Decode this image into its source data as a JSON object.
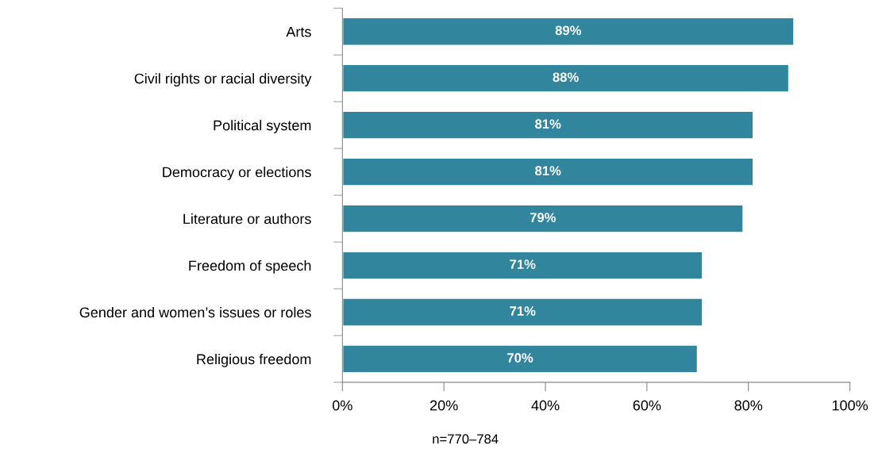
{
  "chart_data": {
    "type": "bar",
    "orientation": "horizontal",
    "categories": [
      "Arts",
      "Civil rights or racial diversity",
      "Political system",
      "Democracy or elections",
      "Literature or authors",
      "Freedom of speech",
      "Gender and women’s issues or roles",
      "Religious freedom"
    ],
    "values": [
      89,
      88,
      81,
      81,
      79,
      71,
      71,
      70
    ],
    "value_labels": [
      "89%",
      "88%",
      "81%",
      "81%",
      "79%",
      "71%",
      "71%",
      "70%"
    ],
    "color": "#31859c",
    "xlim": [
      0,
      100
    ],
    "xticks": [
      {
        "value": 0,
        "label": "0%"
      },
      {
        "value": 20,
        "label": "20%"
      },
      {
        "value": 40,
        "label": "40%"
      },
      {
        "value": 60,
        "label": "60%"
      },
      {
        "value": 80,
        "label": "80%"
      },
      {
        "value": 100,
        "label": "100%"
      }
    ],
    "grid": false,
    "legend": false,
    "annotations": [
      "n=770–784"
    ]
  }
}
